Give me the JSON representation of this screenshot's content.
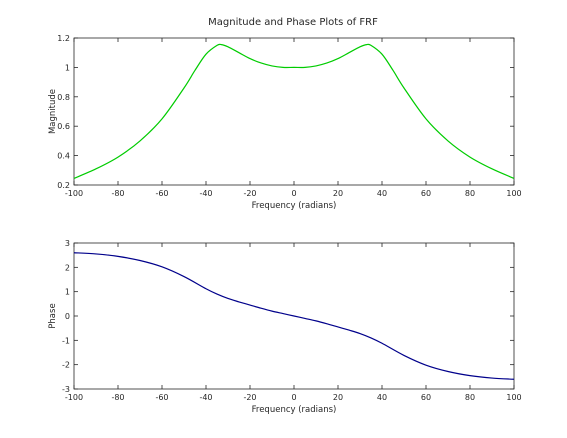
{
  "figure": {
    "title": "Magnitude and Phase Plots of FRF"
  },
  "chart_data": [
    {
      "type": "line",
      "xlabel": "Frequency (radians)",
      "ylabel": "Magnitude",
      "xlim": [
        -100,
        100
      ],
      "ylim": [
        0.2,
        1.2
      ],
      "xticks": [
        -100,
        -80,
        -60,
        -40,
        -20,
        0,
        20,
        40,
        60,
        80,
        100
      ],
      "yticks": [
        0.2,
        0.4,
        0.6,
        0.8,
        1,
        1.2
      ],
      "grid": false,
      "series": [
        {
          "color": "#00cc00",
          "x": [
            -100,
            -90,
            -80,
            -70,
            -60,
            -50,
            -45,
            -40,
            -35,
            -33,
            -30,
            -25,
            -20,
            -15,
            -10,
            -5,
            0,
            5,
            10,
            15,
            20,
            25,
            30,
            33,
            35,
            40,
            45,
            50,
            60,
            70,
            80,
            90,
            100
          ],
          "y": [
            0.245,
            0.31,
            0.39,
            0.5,
            0.65,
            0.86,
            0.98,
            1.09,
            1.15,
            1.155,
            1.14,
            1.1,
            1.06,
            1.03,
            1.01,
            1.0,
            1.0,
            1.0,
            1.01,
            1.03,
            1.06,
            1.1,
            1.14,
            1.155,
            1.15,
            1.09,
            0.98,
            0.86,
            0.65,
            0.5,
            0.39,
            0.31,
            0.245
          ]
        }
      ]
    },
    {
      "type": "line",
      "xlabel": "Frequency (radians)",
      "ylabel": "Phase",
      "xlim": [
        -100,
        100
      ],
      "ylim": [
        -3,
        3
      ],
      "xticks": [
        -100,
        -80,
        -60,
        -40,
        -20,
        0,
        20,
        40,
        60,
        80,
        100
      ],
      "yticks": [
        -3,
        -2,
        -1,
        0,
        1,
        2,
        3
      ],
      "grid": false,
      "series": [
        {
          "color": "#00008b",
          "x": [
            -100,
            -90,
            -80,
            -70,
            -60,
            -50,
            -40,
            -35,
            -30,
            -25,
            -20,
            -15,
            -10,
            -5,
            0,
            5,
            10,
            15,
            20,
            25,
            30,
            35,
            40,
            50,
            60,
            70,
            80,
            90,
            100
          ],
          "y": [
            2.6,
            2.55,
            2.45,
            2.28,
            2.02,
            1.62,
            1.12,
            0.9,
            0.72,
            0.58,
            0.45,
            0.32,
            0.2,
            0.1,
            0.0,
            -0.1,
            -0.2,
            -0.32,
            -0.45,
            -0.58,
            -0.72,
            -0.9,
            -1.12,
            -1.62,
            -2.02,
            -2.28,
            -2.45,
            -2.55,
            -2.6
          ]
        }
      ]
    }
  ]
}
